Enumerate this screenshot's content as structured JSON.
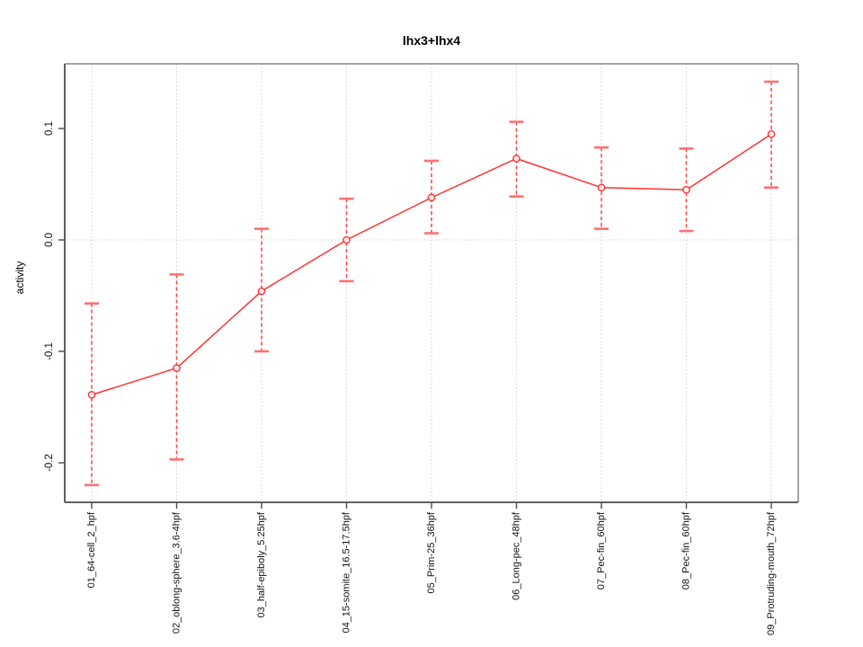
{
  "chart_data": {
    "type": "line",
    "title": "lhx3+lhx4",
    "xlabel": "",
    "ylabel": "activity",
    "categories": [
      "01_64-cell_2_hpf",
      "02_oblong-sphere_3.6-4hpf",
      "03_half-epiboly_5.25hpf",
      "04_15-somite_16.5-17.5hpf",
      "05_Prim-25_36hpf",
      "06_Long-pec_48hpf",
      "07_Pec-fin_60hpf",
      "08_Pec-fin_60hpf",
      "09_Protruding-mouth_72hpf"
    ],
    "series": [
      {
        "name": "activity",
        "values": [
          -0.139,
          -0.115,
          -0.046,
          0.0,
          0.038,
          0.073,
          0.047,
          0.045,
          0.095
        ],
        "error_lower": [
          -0.22,
          -0.197,
          -0.1,
          -0.037,
          0.006,
          0.039,
          0.01,
          0.008,
          0.047
        ],
        "error_upper": [
          -0.057,
          -0.031,
          0.01,
          0.037,
          0.071,
          0.106,
          0.083,
          0.082,
          0.142
        ]
      }
    ],
    "y_ticks": [
      0.1,
      0.0,
      -0.1,
      -0.2
    ],
    "ylim": [
      -0.235,
      0.158
    ],
    "legend": "none",
    "grid": {
      "vertical_at_each_category": true,
      "horizontal_at": 0.0,
      "style": "dotted"
    },
    "marker": "open-circle",
    "error_bar_style": "dashed-with-caps",
    "colors": {
      "series": "#ff3333",
      "error_cap": "#ff7070",
      "grid": "#d2d2d2",
      "box": "#999999",
      "axis": "#4d4d4d",
      "text": "#111111"
    }
  }
}
